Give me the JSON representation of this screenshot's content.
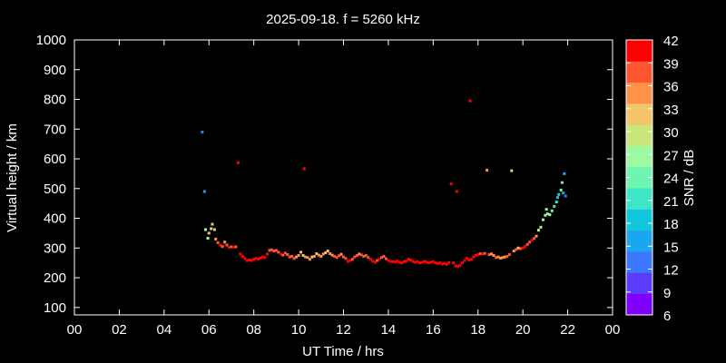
{
  "chart_data": {
    "type": "scatter",
    "title": "2025-09-18. f = 5260 kHz",
    "xlabel": "UT Time / hrs",
    "ylabel": "Virtual height / km",
    "xlim": [
      0,
      24
    ],
    "ylim": [
      75,
      1000
    ],
    "x_tick_labels": [
      "00",
      "02",
      "04",
      "06",
      "08",
      "10",
      "12",
      "14",
      "16",
      "18",
      "20",
      "22",
      "00"
    ],
    "y_ticks": [
      100,
      200,
      300,
      400,
      500,
      600,
      700,
      800,
      900,
      1000
    ],
    "grid": false,
    "colorbar": {
      "label": "SNR / dB",
      "range": [
        6,
        42
      ],
      "tick_labels": [
        "42",
        "39",
        "36",
        "33",
        "30",
        "27",
        "24",
        "21",
        "18",
        "15",
        "12",
        "9",
        "6"
      ],
      "colors": [
        "#7f00ff",
        "#5a3cff",
        "#3a78ff",
        "#1ca6f2",
        "#12c6db",
        "#3ee6c8",
        "#6ef5b0",
        "#9cfba0",
        "#c9e67d",
        "#f3c469",
        "#ff9248",
        "#ff5530",
        "#ff0000"
      ]
    },
    "points": [
      [
        5.7,
        690,
        13
      ],
      [
        5.8,
        490,
        17
      ],
      [
        5.85,
        362,
        27
      ],
      [
        6.0,
        350,
        33
      ],
      [
        6.1,
        365,
        30
      ],
      [
        6.15,
        380,
        32
      ],
      [
        6.25,
        362,
        33
      ],
      [
        5.95,
        333,
        26
      ],
      [
        6.3,
        330,
        35
      ],
      [
        6.4,
        318,
        38
      ],
      [
        6.5,
        310,
        40
      ],
      [
        6.6,
        305,
        39
      ],
      [
        6.7,
        320,
        36
      ],
      [
        6.8,
        310,
        38
      ],
      [
        6.9,
        302,
        40
      ],
      [
        7.0,
        304,
        39
      ],
      [
        7.1,
        303,
        40
      ],
      [
        7.2,
        304,
        39
      ],
      [
        7.3,
        587,
        40
      ],
      [
        7.4,
        280,
        40
      ],
      [
        7.5,
        272,
        41
      ],
      [
        7.6,
        265,
        41
      ],
      [
        7.7,
        258,
        41
      ],
      [
        7.8,
        260,
        41
      ],
      [
        7.9,
        258,
        41
      ],
      [
        8.0,
        262,
        41
      ],
      [
        8.1,
        265,
        40
      ],
      [
        8.2,
        263,
        41
      ],
      [
        8.3,
        267,
        40
      ],
      [
        8.4,
        270,
        40
      ],
      [
        8.5,
        268,
        41
      ],
      [
        8.6,
        280,
        40
      ],
      [
        8.7,
        292,
        38
      ],
      [
        8.8,
        294,
        38
      ],
      [
        8.9,
        290,
        39
      ],
      [
        9.0,
        292,
        37
      ],
      [
        9.1,
        286,
        39
      ],
      [
        9.2,
        280,
        40
      ],
      [
        9.3,
        276,
        39
      ],
      [
        9.4,
        283,
        38
      ],
      [
        9.5,
        278,
        37
      ],
      [
        9.6,
        270,
        39
      ],
      [
        9.7,
        272,
        38
      ],
      [
        9.8,
        265,
        38
      ],
      [
        9.9,
        270,
        36
      ],
      [
        10.0,
        275,
        35
      ],
      [
        10.1,
        286,
        31
      ],
      [
        10.2,
        275,
        33
      ],
      [
        10.25,
        567,
        40
      ],
      [
        10.3,
        270,
        36
      ],
      [
        10.4,
        268,
        34
      ],
      [
        10.5,
        262,
        36
      ],
      [
        10.6,
        270,
        33
      ],
      [
        10.7,
        272,
        34
      ],
      [
        10.8,
        281,
        32
      ],
      [
        10.9,
        276,
        34
      ],
      [
        11.0,
        272,
        36
      ],
      [
        11.1,
        280,
        35
      ],
      [
        11.2,
        284,
        33
      ],
      [
        11.3,
        290,
        32
      ],
      [
        11.4,
        281,
        35
      ],
      [
        11.5,
        276,
        36
      ],
      [
        11.6,
        272,
        37
      ],
      [
        11.7,
        268,
        38
      ],
      [
        11.8,
        274,
        37
      ],
      [
        11.9,
        279,
        36
      ],
      [
        12.0,
        270,
        38
      ],
      [
        12.1,
        265,
        39
      ],
      [
        12.2,
        255,
        40
      ],
      [
        12.3,
        258,
        40
      ],
      [
        12.4,
        262,
        39
      ],
      [
        12.5,
        270,
        38
      ],
      [
        12.6,
        275,
        38
      ],
      [
        12.7,
        280,
        36
      ],
      [
        12.8,
        277,
        37
      ],
      [
        12.9,
        272,
        38
      ],
      [
        13.0,
        275,
        37
      ],
      [
        13.1,
        268,
        39
      ],
      [
        13.2,
        263,
        40
      ],
      [
        13.3,
        256,
        40
      ],
      [
        13.4,
        252,
        40
      ],
      [
        13.5,
        258,
        39
      ],
      [
        13.6,
        262,
        40
      ],
      [
        13.7,
        268,
        39
      ],
      [
        13.8,
        272,
        37
      ],
      [
        13.9,
        264,
        39
      ],
      [
        14.0,
        258,
        40
      ],
      [
        14.1,
        255,
        41
      ],
      [
        14.2,
        254,
        40
      ],
      [
        14.3,
        253,
        41
      ],
      [
        14.4,
        256,
        40
      ],
      [
        14.5,
        252,
        41
      ],
      [
        14.6,
        250,
        40
      ],
      [
        14.7,
        254,
        41
      ],
      [
        14.8,
        256,
        40
      ],
      [
        14.9,
        262,
        40
      ],
      [
        15.0,
        260,
        41
      ],
      [
        15.1,
        255,
        40
      ],
      [
        15.2,
        252,
        41
      ],
      [
        15.3,
        254,
        41
      ],
      [
        15.4,
        250,
        40
      ],
      [
        15.5,
        252,
        41
      ],
      [
        15.6,
        255,
        40
      ],
      [
        15.7,
        253,
        41
      ],
      [
        15.8,
        250,
        41
      ],
      [
        15.9,
        252,
        40
      ],
      [
        16.0,
        254,
        41
      ],
      [
        16.1,
        250,
        41
      ],
      [
        16.2,
        248,
        41
      ],
      [
        16.3,
        250,
        40
      ],
      [
        16.4,
        246,
        41
      ],
      [
        16.5,
        248,
        41
      ],
      [
        16.6,
        245,
        41
      ],
      [
        16.7,
        251,
        41
      ],
      [
        16.8,
        516,
        41
      ],
      [
        16.9,
        250,
        41
      ],
      [
        17.0,
        240,
        41
      ],
      [
        17.05,
        490,
        41
      ],
      [
        17.1,
        238,
        41
      ],
      [
        17.2,
        242,
        41
      ],
      [
        17.3,
        250,
        41
      ],
      [
        17.4,
        258,
        41
      ],
      [
        17.5,
        265,
        41
      ],
      [
        17.6,
        260,
        40
      ],
      [
        17.65,
        795,
        41
      ],
      [
        17.7,
        262,
        41
      ],
      [
        17.8,
        270,
        40
      ],
      [
        17.9,
        275,
        40
      ],
      [
        18.0,
        278,
        40
      ],
      [
        18.1,
        281,
        39
      ],
      [
        18.2,
        280,
        40
      ],
      [
        18.3,
        282,
        38
      ],
      [
        18.4,
        562,
        36
      ],
      [
        18.5,
        278,
        37
      ],
      [
        18.6,
        280,
        36
      ],
      [
        18.7,
        275,
        35
      ],
      [
        18.8,
        268,
        37
      ],
      [
        18.9,
        270,
        36
      ],
      [
        19.0,
        266,
        35
      ],
      [
        19.1,
        268,
        36
      ],
      [
        19.2,
        270,
        35
      ],
      [
        19.3,
        272,
        37
      ],
      [
        19.4,
        278,
        37
      ],
      [
        19.5,
        560,
        33
      ],
      [
        19.6,
        290,
        35
      ],
      [
        19.7,
        295,
        37
      ],
      [
        19.8,
        300,
        32
      ],
      [
        19.9,
        298,
        38
      ],
      [
        20.0,
        300,
        40
      ],
      [
        20.1,
        305,
        40
      ],
      [
        20.2,
        312,
        39
      ],
      [
        20.3,
        320,
        39
      ],
      [
        20.4,
        326,
        40
      ],
      [
        20.5,
        332,
        38
      ],
      [
        20.6,
        340,
        36
      ],
      [
        20.7,
        360,
        30
      ],
      [
        20.8,
        370,
        28
      ],
      [
        20.9,
        395,
        27
      ],
      [
        21.0,
        410,
        27
      ],
      [
        21.05,
        430,
        26
      ],
      [
        21.1,
        415,
        27
      ],
      [
        21.2,
        412,
        26
      ],
      [
        21.3,
        425,
        24
      ],
      [
        21.4,
        440,
        22
      ],
      [
        21.5,
        455,
        22
      ],
      [
        21.55,
        470,
        19
      ],
      [
        21.6,
        480,
        18
      ],
      [
        21.7,
        495,
        23
      ],
      [
        21.75,
        520,
        23
      ],
      [
        21.8,
        485,
        15
      ],
      [
        21.85,
        550,
        16
      ],
      [
        21.9,
        475,
        12
      ]
    ]
  }
}
